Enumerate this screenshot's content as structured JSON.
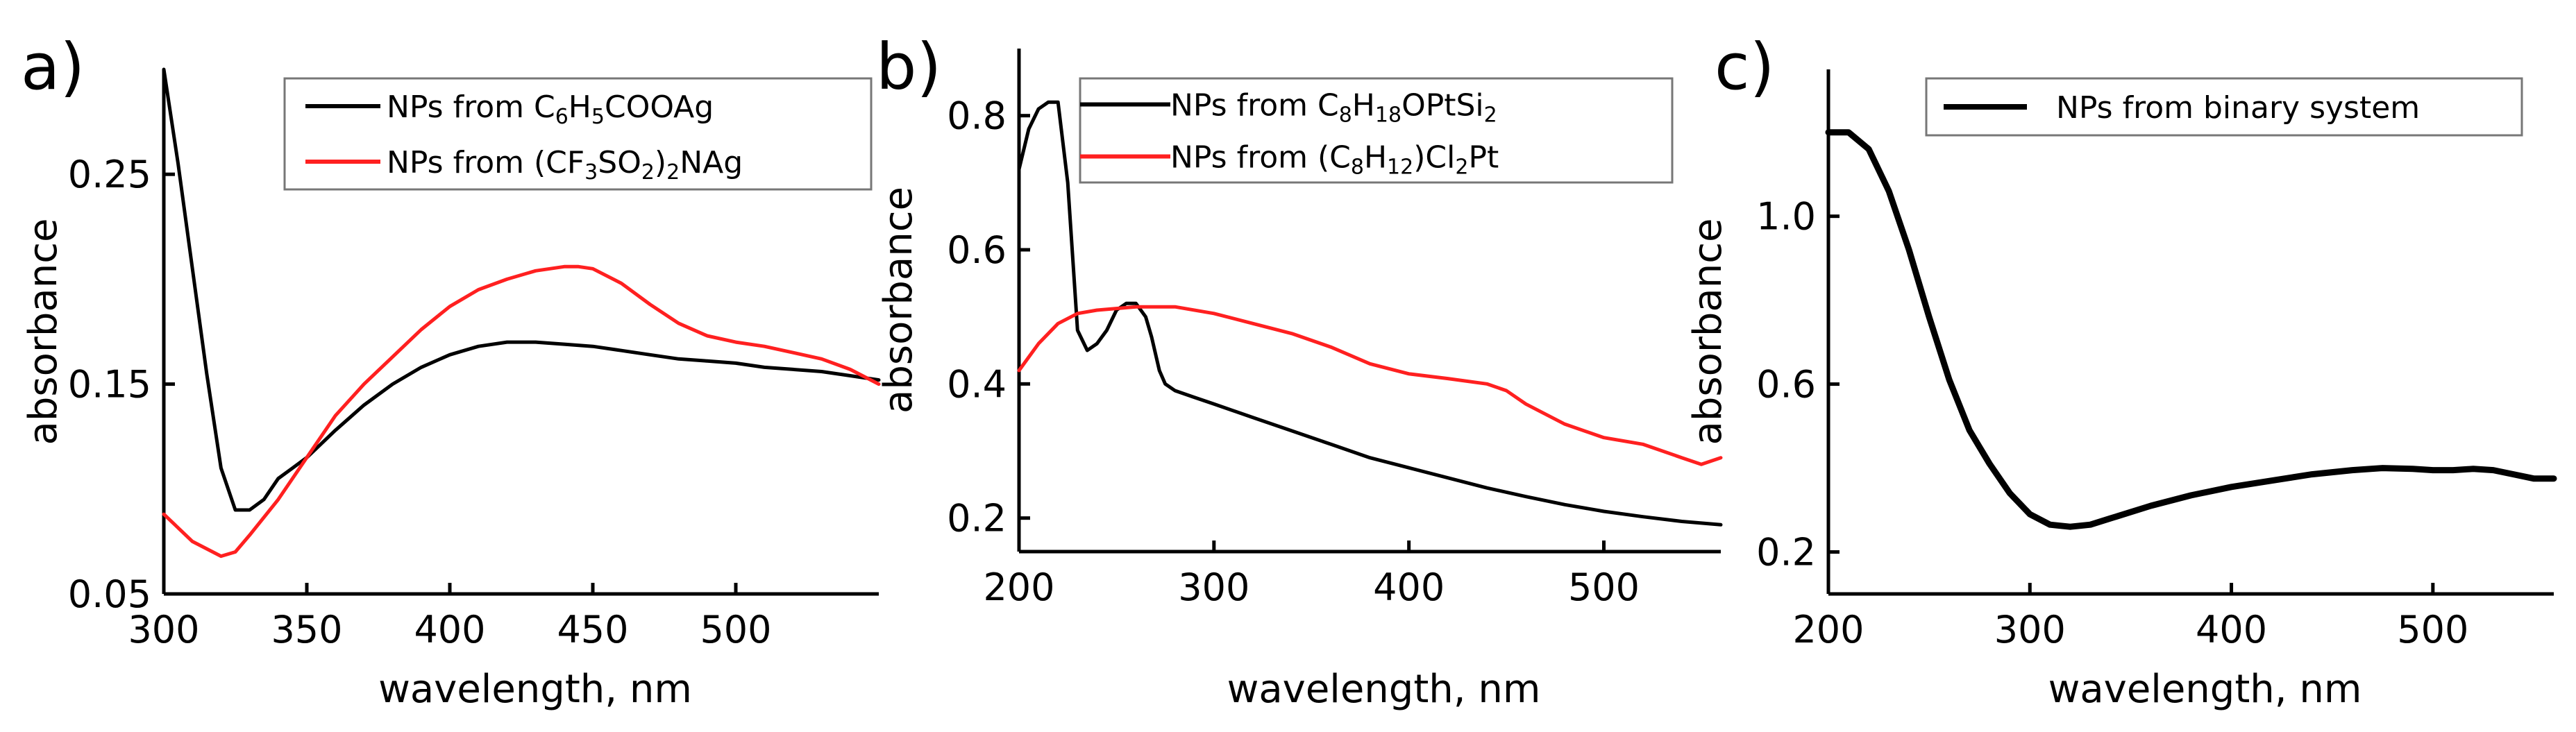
{
  "chart_data": [
    {
      "type": "line",
      "panel_label": "a)",
      "xlabel": "wavelength, nm",
      "ylabel": "absorbance",
      "xlim": [
        300,
        550
      ],
      "ylim": [
        0.05,
        0.3
      ],
      "x_ticks": [
        "300",
        "350",
        "400",
        "450",
        "500"
      ],
      "y_ticks": [
        "0.05",
        "0.15",
        "0.25"
      ],
      "legend_position": "top-right",
      "series": [
        {
          "name": "NPs from C6H5COOAg",
          "legend_parts": [
            [
              "NPs from C",
              ""
            ],
            [
              "6",
              "sub"
            ],
            [
              "H",
              ""
            ],
            [
              "5",
              "sub"
            ],
            [
              "COOAg",
              ""
            ]
          ],
          "color": "#000000",
          "x": [
            300,
            305,
            310,
            315,
            320,
            325,
            330,
            335,
            340,
            345,
            350,
            360,
            370,
            380,
            390,
            400,
            410,
            420,
            430,
            440,
            450,
            460,
            470,
            480,
            490,
            500,
            510,
            520,
            530,
            540,
            550
          ],
          "y": [
            0.3,
            0.255,
            0.205,
            0.155,
            0.11,
            0.09,
            0.09,
            0.095,
            0.105,
            0.11,
            0.115,
            0.128,
            0.14,
            0.15,
            0.158,
            0.164,
            0.168,
            0.17,
            0.17,
            0.169,
            0.168,
            0.166,
            0.164,
            0.162,
            0.161,
            0.16,
            0.158,
            0.157,
            0.156,
            0.154,
            0.152
          ]
        },
        {
          "name": "NPs from (CF3SO2)2NAg",
          "legend_parts": [
            [
              "NPs from (CF",
              ""
            ],
            [
              "3",
              "sub"
            ],
            [
              "SO",
              ""
            ],
            [
              "2",
              "sub"
            ],
            [
              ")",
              ""
            ],
            [
              "2",
              "sub"
            ],
            [
              "NAg",
              ""
            ]
          ],
          "color": "#ff2020",
          "x": [
            300,
            310,
            320,
            325,
            330,
            340,
            350,
            360,
            370,
            380,
            390,
            400,
            410,
            420,
            430,
            440,
            445,
            450,
            460,
            470,
            480,
            490,
            500,
            510,
            520,
            530,
            540,
            550
          ],
          "y": [
            0.088,
            0.075,
            0.068,
            0.07,
            0.078,
            0.095,
            0.115,
            0.135,
            0.15,
            0.163,
            0.176,
            0.187,
            0.195,
            0.2,
            0.204,
            0.206,
            0.206,
            0.205,
            0.198,
            0.188,
            0.179,
            0.173,
            0.17,
            0.168,
            0.165,
            0.162,
            0.157,
            0.15
          ]
        }
      ]
    },
    {
      "type": "line",
      "panel_label": "b)",
      "xlabel": "wavelength, nm",
      "ylabel": "absorbance",
      "xlim": [
        200,
        560
      ],
      "ylim": [
        0.15,
        0.9
      ],
      "x_ticks": [
        "200",
        "300",
        "400",
        "500"
      ],
      "y_ticks": [
        "0.2",
        "0.4",
        "0.6",
        "0.8"
      ],
      "legend_position": "top-right",
      "series": [
        {
          "name": "NPs from C8H18OPtSi2",
          "legend_parts": [
            [
              "NPs from C",
              ""
            ],
            [
              "8",
              "sub"
            ],
            [
              "H",
              ""
            ],
            [
              "18",
              "sub"
            ],
            [
              "OPtSi",
              ""
            ],
            [
              "2",
              "sub"
            ]
          ],
          "color": "#000000",
          "x": [
            200,
            205,
            210,
            215,
            220,
            225,
            230,
            235,
            240,
            245,
            250,
            255,
            260,
            265,
            268,
            272,
            275,
            280,
            290,
            300,
            320,
            340,
            360,
            380,
            400,
            420,
            440,
            460,
            480,
            500,
            520,
            540,
            560
          ],
          "y": [
            0.72,
            0.78,
            0.81,
            0.82,
            0.82,
            0.7,
            0.48,
            0.45,
            0.46,
            0.48,
            0.51,
            0.52,
            0.52,
            0.5,
            0.47,
            0.42,
            0.4,
            0.39,
            0.38,
            0.37,
            0.35,
            0.33,
            0.31,
            0.29,
            0.275,
            0.26,
            0.245,
            0.232,
            0.22,
            0.21,
            0.202,
            0.195,
            0.19
          ]
        },
        {
          "name": "NPs from (C8H12)Cl2Pt",
          "legend_parts": [
            [
              "NPs from (C",
              ""
            ],
            [
              "8",
              "sub"
            ],
            [
              "H",
              ""
            ],
            [
              "12",
              "sub"
            ],
            [
              ")Cl",
              ""
            ],
            [
              "2",
              "sub"
            ],
            [
              "Pt",
              ""
            ]
          ],
          "color": "#ff2020",
          "x": [
            200,
            210,
            220,
            230,
            240,
            260,
            280,
            300,
            320,
            340,
            360,
            380,
            400,
            420,
            440,
            450,
            460,
            480,
            500,
            520,
            540,
            550,
            560
          ],
          "y": [
            0.42,
            0.46,
            0.49,
            0.505,
            0.51,
            0.515,
            0.515,
            0.505,
            0.49,
            0.475,
            0.455,
            0.43,
            0.415,
            0.408,
            0.4,
            0.39,
            0.37,
            0.34,
            0.32,
            0.31,
            0.29,
            0.28,
            0.29
          ]
        }
      ]
    },
    {
      "type": "line",
      "panel_label": "c)",
      "xlabel": "wavelength, nm",
      "ylabel": "absorbance",
      "xlim": [
        200,
        560
      ],
      "ylim": [
        0.1,
        1.35
      ],
      "x_ticks": [
        "200",
        "300",
        "400",
        "500"
      ],
      "y_ticks": [
        "0.2",
        "0.6",
        "1.0"
      ],
      "legend_position": "top-right",
      "series": [
        {
          "name": "NPs from binary system",
          "legend_parts": [
            [
              "NPs from binary system",
              ""
            ]
          ],
          "color": "#000000",
          "x": [
            200,
            210,
            220,
            230,
            240,
            250,
            260,
            270,
            280,
            290,
            300,
            310,
            320,
            330,
            340,
            360,
            380,
            400,
            420,
            440,
            460,
            475,
            490,
            500,
            510,
            520,
            530,
            540,
            550,
            560
          ],
          "y": [
            1.2,
            1.2,
            1.16,
            1.06,
            0.92,
            0.76,
            0.61,
            0.49,
            0.41,
            0.34,
            0.29,
            0.265,
            0.26,
            0.265,
            0.28,
            0.31,
            0.335,
            0.355,
            0.37,
            0.385,
            0.395,
            0.4,
            0.398,
            0.395,
            0.395,
            0.398,
            0.395,
            0.385,
            0.375,
            0.375
          ]
        }
      ]
    }
  ]
}
